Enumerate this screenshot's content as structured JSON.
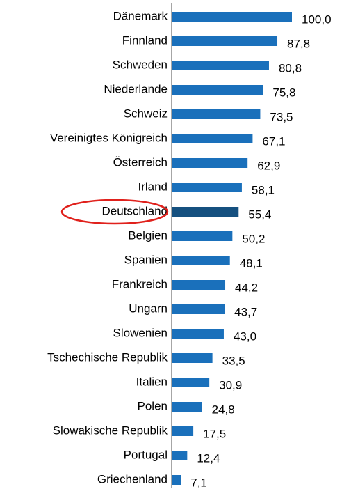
{
  "chart_data": {
    "type": "bar",
    "orientation": "horizontal",
    "categories": [
      "Dänemark",
      "Finnland",
      "Schweden",
      "Niederlande",
      "Schweiz",
      "Vereinigtes Königreich",
      "Österreich",
      "Irland",
      "Deutschland",
      "Belgien",
      "Spanien",
      "Frankreich",
      "Ungarn",
      "Slowenien",
      "Tschechische Republik",
      "Italien",
      "Polen",
      "Slowakische Republik",
      "Portugal",
      "Griechenland"
    ],
    "values": [
      100.0,
      87.8,
      80.8,
      75.8,
      73.5,
      67.1,
      62.9,
      58.1,
      55.4,
      50.2,
      48.1,
      44.2,
      43.7,
      43.0,
      33.5,
      30.9,
      24.8,
      17.5,
      12.4,
      7.1
    ],
    "value_labels": [
      "100,0",
      "87,8",
      "80,8",
      "75,8",
      "73,5",
      "67,1",
      "62,9",
      "58,1",
      "55,4",
      "50,2",
      "48,1",
      "44,2",
      "43,7",
      "43,0",
      "33,5",
      "30,9",
      "24,8",
      "17,5",
      "12,4",
      "7,1"
    ],
    "colors": [
      "#1a70bb",
      "#1a70bb",
      "#1a70bb",
      "#1a70bb",
      "#1a70bb",
      "#1a70bb",
      "#1a70bb",
      "#1a70bb",
      "#15507f",
      "#1a70bb",
      "#1a70bb",
      "#1a70bb",
      "#1a70bb",
      "#1a70bb",
      "#1a70bb",
      "#1a70bb",
      "#1a70bb",
      "#1a70bb",
      "#1a70bb",
      "#1a70bb"
    ]
  }
}
